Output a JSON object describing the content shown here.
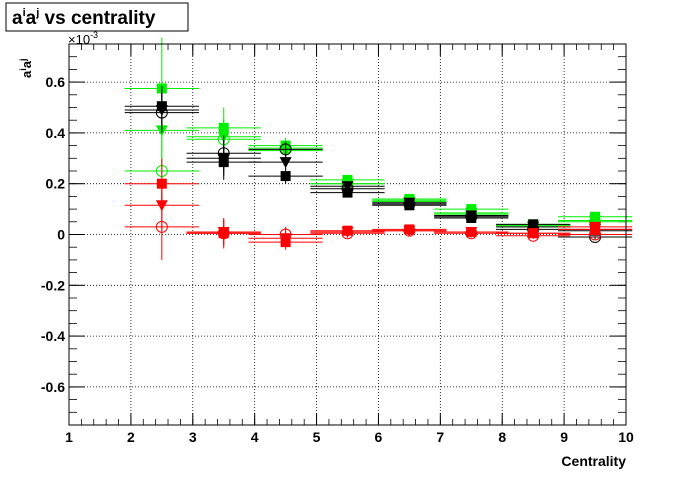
{
  "chart_data": {
    "type": "scatter",
    "title": "aⁱaʲ vs centrality",
    "title_parts": {
      "a1": "a",
      "sup1": "i",
      "a2": "a",
      "sup2": "j",
      "rest": " vs centrality"
    },
    "xlabel": "Centrality",
    "ylabel_parts": {
      "a1": "a",
      "sup1": "i",
      "a2": "a",
      "sup2": "j"
    },
    "y_exponent": {
      "base": "×10",
      "exp": "-3"
    },
    "xlim": [
      1,
      10
    ],
    "ylim": [
      -0.75,
      0.75
    ],
    "x_ticks": [
      1,
      2,
      3,
      4,
      5,
      6,
      7,
      8,
      9,
      10
    ],
    "x_tick_labels": [
      "1",
      "2",
      "3",
      "4",
      "5",
      "6",
      "7",
      "8",
      "9",
      "10"
    ],
    "y_ticks": [
      -0.6,
      -0.4,
      -0.2,
      0,
      0.2,
      0.4,
      0.6
    ],
    "y_tick_labels": [
      "-0.6",
      "-0.4",
      "-0.2",
      "0",
      "0.2",
      "0.4",
      "0.6"
    ],
    "grid": true,
    "series": [
      {
        "color": "#00ee00",
        "marker": "square",
        "x": [
          2.5,
          3.5,
          4.5,
          5.5,
          6.5,
          7.5,
          8.5,
          9.5
        ],
        "y": [
          0.575,
          0.42,
          0.35,
          0.215,
          0.14,
          0.1,
          0.04,
          0.07
        ],
        "xerr": 0.6,
        "yerr": [
          0.2,
          0.08,
          0.03,
          0.02,
          0.015,
          0.012,
          0.012,
          0.015
        ]
      },
      {
        "color": "#00ee00",
        "marker": "triangle-down",
        "x": [
          2.5,
          3.5,
          4.5,
          5.5,
          6.5,
          7.5,
          8.5,
          9.5
        ],
        "y": [
          0.41,
          0.385,
          0.33,
          0.2,
          0.13,
          0.085,
          0.035,
          0.055
        ],
        "xerr": 0.6,
        "yerr": [
          0.15,
          0.07,
          0.03,
          0.02,
          0.015,
          0.012,
          0.012,
          0.015
        ]
      },
      {
        "color": "#00ee00",
        "marker": "circle-open",
        "x": [
          2.5,
          3.5,
          4.5,
          5.5,
          6.5,
          7.5,
          8.5,
          9.5
        ],
        "y": [
          0.25,
          0.375,
          0.34,
          0.2,
          0.135,
          0.08,
          0.03,
          0.05
        ],
        "xerr": 0.6,
        "yerr": [
          0.12,
          0.06,
          0.03,
          0.02,
          0.015,
          0.012,
          0.012,
          0.015
        ]
      },
      {
        "color": "#000000",
        "marker": "square",
        "x": [
          2.5,
          3.5,
          4.5,
          5.5,
          6.5,
          7.5,
          8.5,
          9.5
        ],
        "y": [
          0.505,
          0.285,
          0.23,
          0.165,
          0.115,
          0.065,
          0.04,
          0.015
        ],
        "xerr": 0.6,
        "yerr": [
          0.08,
          0.07,
          0.03,
          0.02,
          0.015,
          0.012,
          0.012,
          0.012
        ]
      },
      {
        "color": "#000000",
        "marker": "triangle-down",
        "x": [
          2.5,
          3.5,
          4.5,
          5.5,
          6.5,
          7.5,
          8.5,
          9.5
        ],
        "y": [
          0.49,
          0.3,
          0.285,
          0.19,
          0.125,
          0.075,
          0.03,
          0.02
        ],
        "xerr": 0.6,
        "yerr": [
          0.08,
          0.07,
          0.03,
          0.02,
          0.015,
          0.012,
          0.012,
          0.012
        ]
      },
      {
        "color": "#000000",
        "marker": "circle-open",
        "x": [
          2.5,
          3.5,
          4.5,
          5.5,
          6.5,
          7.5,
          8.5,
          9.5
        ],
        "y": [
          0.48,
          0.32,
          0.335,
          0.18,
          0.12,
          0.07,
          0.02,
          -0.01
        ],
        "xerr": 0.6,
        "yerr": [
          0.08,
          0.07,
          0.03,
          0.02,
          0.015,
          0.012,
          0.012,
          0.012
        ]
      },
      {
        "color": "#ff0000",
        "marker": "square",
        "x": [
          2.5,
          3.5,
          4.5,
          5.5,
          6.5,
          7.5,
          8.5,
          9.5
        ],
        "y": [
          0.2,
          0.005,
          -0.03,
          0.015,
          0.02,
          0.01,
          0.005,
          0.02
        ],
        "xerr": 0.6,
        "yerr": [
          0.1,
          0.05,
          0.03,
          0.015,
          0.012,
          0.01,
          0.01,
          0.012
        ]
      },
      {
        "color": "#ff0000",
        "marker": "triangle-down",
        "x": [
          2.5,
          3.5,
          4.5,
          5.5,
          6.5,
          7.5,
          8.5,
          9.5
        ],
        "y": [
          0.115,
          0.01,
          -0.015,
          0.01,
          0.015,
          0.01,
          0.005,
          0.03
        ],
        "xerr": 0.6,
        "yerr": [
          0.1,
          0.05,
          0.03,
          0.015,
          0.012,
          0.01,
          0.01,
          0.012
        ]
      },
      {
        "color": "#ff0000",
        "marker": "circle-open",
        "x": [
          2.5,
          3.5,
          4.5,
          5.5,
          6.5,
          7.5,
          8.5,
          9.5
        ],
        "y": [
          0.03,
          0.005,
          0.0,
          0.005,
          0.015,
          0.005,
          -0.005,
          0.0
        ],
        "xerr": 0.6,
        "yerr": [
          0.13,
          0.06,
          0.03,
          0.015,
          0.012,
          0.01,
          0.01,
          0.012
        ]
      }
    ]
  }
}
